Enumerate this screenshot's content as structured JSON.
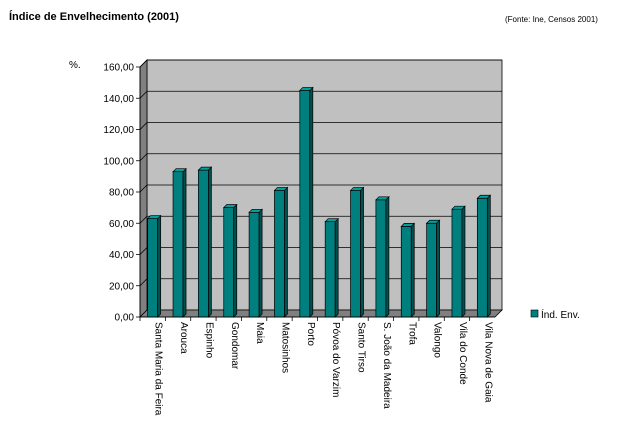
{
  "title": "Índice de Envelhecimento (2001)",
  "source": "(Fonte: Ine, Censos 2001)",
  "chart_data": {
    "type": "bar",
    "title": "Índice de Envelhecimento (2001)",
    "ylabel": "%.",
    "xlabel": "",
    "ylim": [
      0,
      160
    ],
    "yticks": [
      0,
      20,
      40,
      60,
      80,
      100,
      120,
      140,
      160
    ],
    "ytick_labels": [
      "0,00",
      "20,00",
      "40,00",
      "60,00",
      "80,00",
      "100,00",
      "120,00",
      "140,00",
      "160,00"
    ],
    "categories": [
      "Santa Maria da Feira",
      "Arouca",
      "Espinho",
      "Gondomar",
      "Maia",
      "Matosinhos",
      "Porto",
      "Póvoa do Varzim",
      "Santo Tirso",
      "S. João da Madeira",
      "Trofa",
      "Valongo",
      "Vila do Conde",
      "Vila Nova de Gaia"
    ],
    "series": [
      {
        "name": "Índ. Env.",
        "values": [
          63,
          93,
          94,
          70,
          67,
          81,
          145,
          61,
          81,
          75,
          58,
          60,
          69,
          76
        ],
        "color": "#007f7f"
      }
    ],
    "grid": true,
    "legend": "right",
    "plot_background": "#c0c0c0"
  }
}
